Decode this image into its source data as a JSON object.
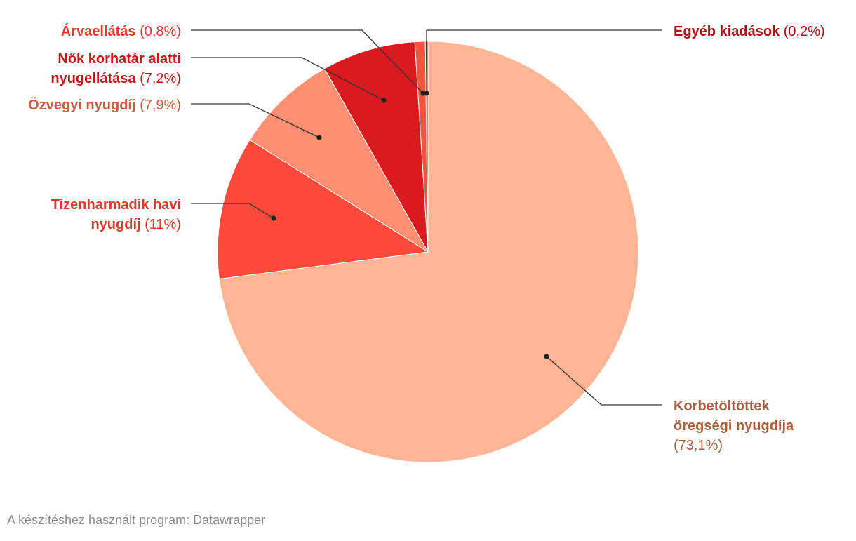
{
  "chart_data": {
    "type": "pie",
    "title": "",
    "start_angle_deg": 0,
    "direction": "clockwise",
    "slices": [
      {
        "key": "korbetoltottek",
        "name_lines": [
          "Korbetöltöttek",
          "öregségi nyugdíja"
        ],
        "pct_text": "(73,1%)",
        "value": 73.1,
        "color": "#ffb494",
        "label_color": "#a85e3e"
      },
      {
        "key": "tizenharmadik",
        "name_lines": [
          "Tizenharmadik havi",
          "nyugdíj"
        ],
        "pct_text": "(11%)",
        "value": 11.0,
        "color": "#ff4a3a",
        "label_color": "#e2362a"
      },
      {
        "key": "ozvegyi",
        "name_lines": [
          "Özvegyi nyugdíj"
        ],
        "pct_text": "(7,9%)",
        "value": 7.9,
        "color": "#ff8e72",
        "label_color": "#c85c44"
      },
      {
        "key": "nok",
        "name_lines": [
          "Nők korhatár alatti",
          "nyugellátása"
        ],
        "pct_text": "(7,2%)",
        "value": 7.2,
        "color": "#d91a1e",
        "label_color": "#c8161b"
      },
      {
        "key": "arvaellatas",
        "name_lines": [
          "Árvaellátás"
        ],
        "pct_text": "(0,8%)",
        "value": 0.8,
        "color": "#f2553d",
        "label_color": "#e03a2a"
      },
      {
        "key": "egyeb",
        "name_lines": [
          "Egyéb kiadások"
        ],
        "pct_text": "(0,2%)",
        "value": 0.2,
        "color": "#b80e0e",
        "label_color": "#b30c10"
      }
    ]
  },
  "footer": {
    "credit": "A készítéshez használt program: Datawrapper"
  }
}
